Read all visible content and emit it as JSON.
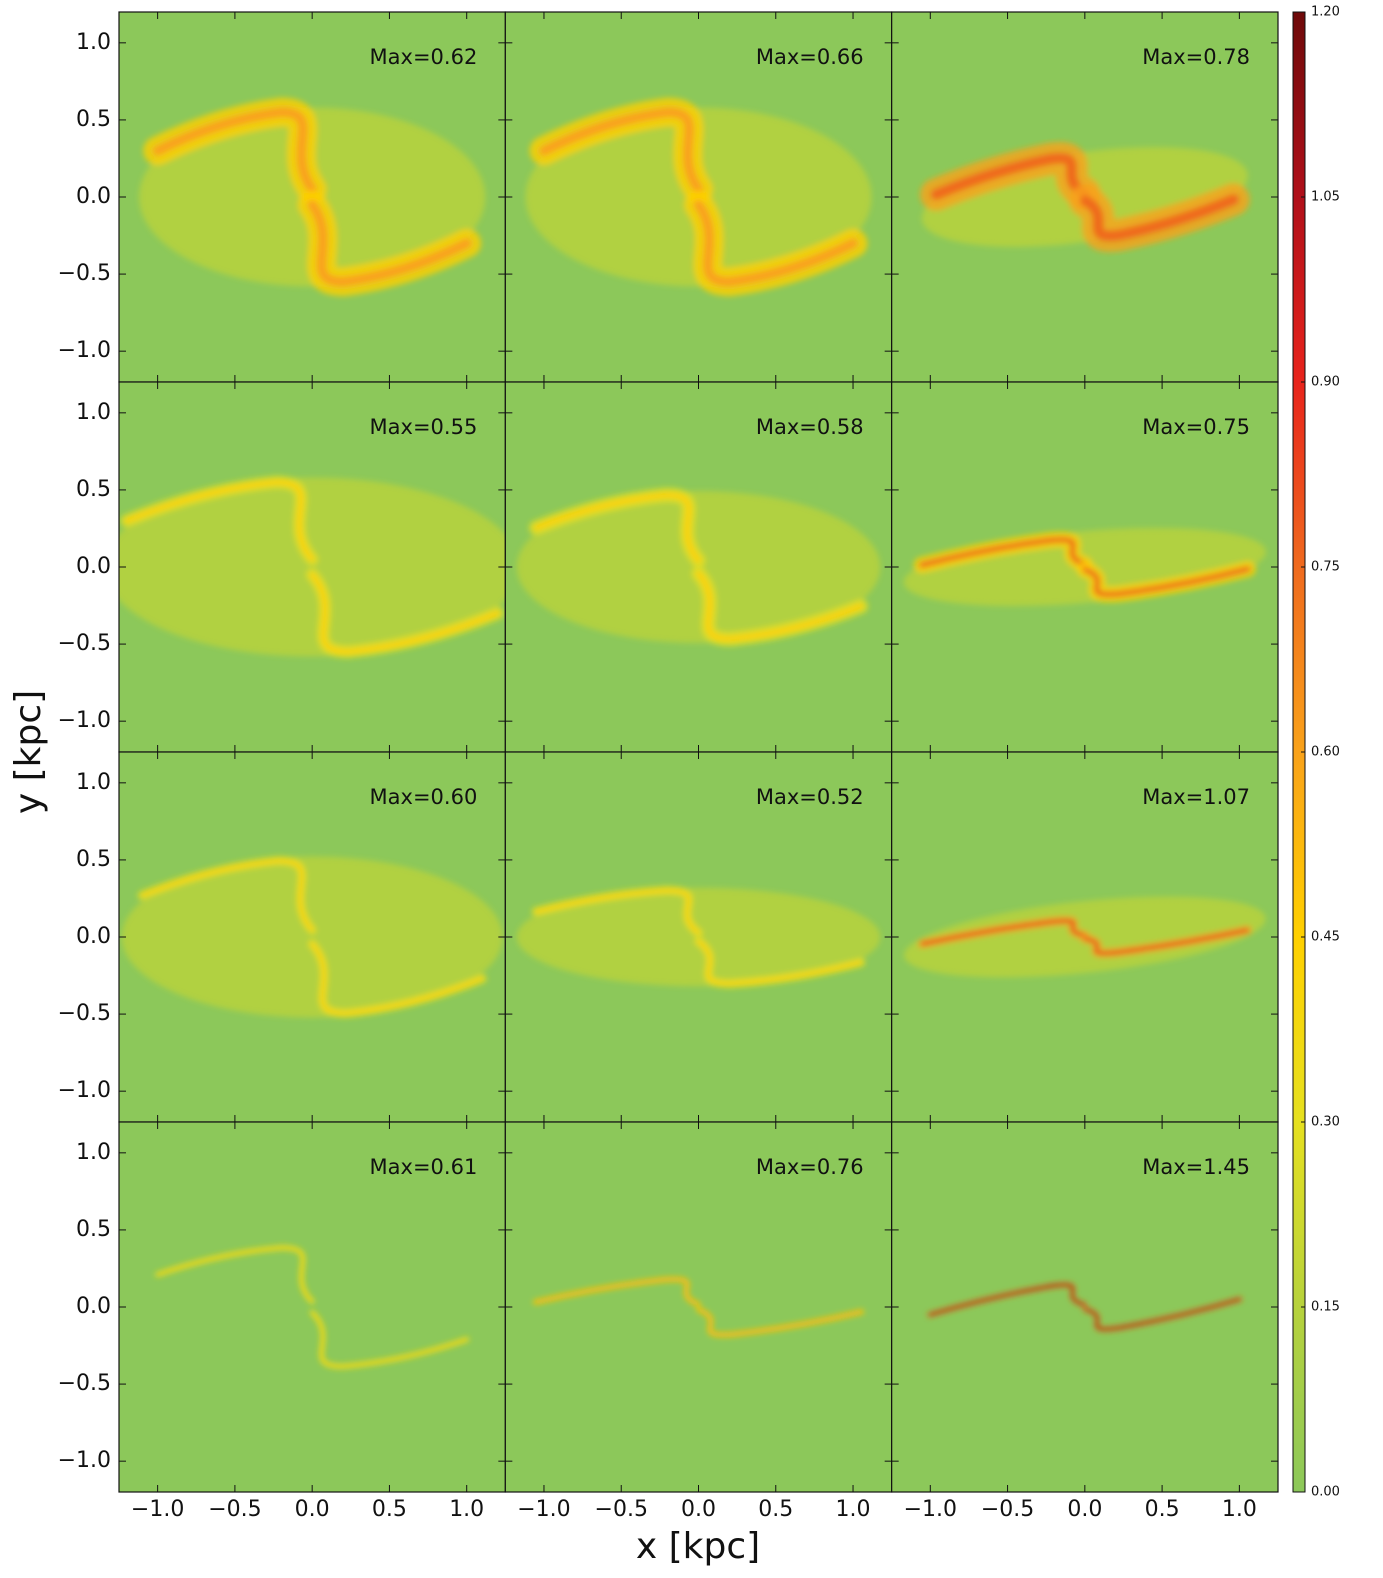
{
  "chart_data": {
    "type": "heatmap",
    "xlabel": "x [kpc]",
    "ylabel": "y [kpc]",
    "rows": 4,
    "columns": 3,
    "xlim": [
      -1.25,
      1.25
    ],
    "ylim": [
      -1.2,
      1.2
    ],
    "xticks": [
      {
        "value": -1.0,
        "label": "−1.0"
      },
      {
        "value": -0.5,
        "label": "−0.5"
      },
      {
        "value": 0.0,
        "label": "0.0"
      },
      {
        "value": 0.5,
        "label": "0.5"
      },
      {
        "value": 1.0,
        "label": "1.0"
      }
    ],
    "yticks": [
      {
        "value": -1.0,
        "label": "−1.0"
      },
      {
        "value": -0.5,
        "label": "−0.5"
      },
      {
        "value": 0.0,
        "label": "0.0"
      },
      {
        "value": 0.5,
        "label": "0.5"
      },
      {
        "value": 1.0,
        "label": "1.0"
      }
    ],
    "panels": [
      {
        "label": "Max=0.62"
      },
      {
        "label": "Max=0.66"
      },
      {
        "label": "Max=0.78"
      },
      {
        "label": "Max=0.55"
      },
      {
        "label": "Max=0.58"
      },
      {
        "label": "Max=0.75"
      },
      {
        "label": "Max=0.60"
      },
      {
        "label": "Max=0.52"
      },
      {
        "label": "Max=1.07"
      },
      {
        "label": "Max=0.61"
      },
      {
        "label": "Max=0.76"
      },
      {
        "label": "Max=1.45"
      }
    ],
    "colorbar": {
      "lim": [
        0,
        1.2
      ],
      "ticks": [
        {
          "value": 0,
          "label": "0.00"
        },
        {
          "value": 0.15,
          "label": "0.15"
        },
        {
          "value": 0.3,
          "label": "0.30"
        },
        {
          "value": 0.45,
          "label": "0.45"
        },
        {
          "value": 0.6,
          "label": "0.60"
        },
        {
          "value": 0.75,
          "label": "0.75"
        },
        {
          "value": 0.9,
          "label": "0.90"
        },
        {
          "value": 1.05,
          "label": "1.05"
        },
        {
          "value": 1.2,
          "label": "1.20"
        }
      ],
      "colors": [
        "#8cc85a",
        "#b7d23c",
        "#e6e020",
        "#ffd000",
        "#f9a21a",
        "#ef6a1e",
        "#e8241c",
        "#b0101a",
        "#6e0a0a"
      ]
    }
  }
}
